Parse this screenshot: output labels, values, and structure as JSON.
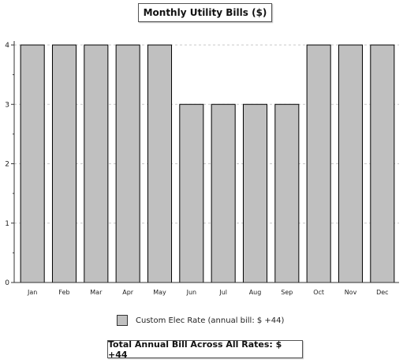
{
  "chart_data": {
    "type": "bar",
    "title": "Monthly Utility Bills ($)",
    "categories": [
      "Jan",
      "Feb",
      "Mar",
      "Apr",
      "May",
      "Jun",
      "Jul",
      "Aug",
      "Sep",
      "Oct",
      "Nov",
      "Dec"
    ],
    "series": [
      {
        "name": "Custom Elec Rate (annual bill: $ +44)",
        "values": [
          4,
          4,
          4,
          4,
          4,
          3,
          3,
          3,
          3,
          4,
          4,
          4
        ]
      }
    ],
    "ylim": [
      0,
      4
    ],
    "yticks": [
      "0",
      "1",
      "2",
      "3",
      "4"
    ],
    "grid": true,
    "bar_color": "#c0c0c0",
    "bar_edge_color": "#000000",
    "legend_position": "bottom"
  },
  "legend": {
    "label": "Custom Elec Rate (annual bill: $ +44)"
  },
  "footer": {
    "total_label": "Total Annual Bill Across All Rates:  $ +44"
  }
}
